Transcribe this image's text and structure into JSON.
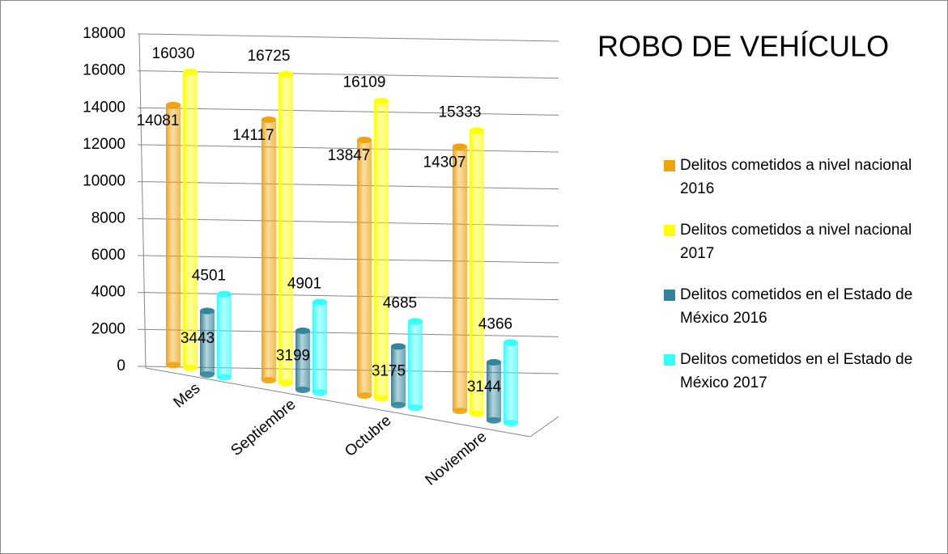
{
  "chart_data": {
    "type": "bar3d",
    "title": "ROBO DE VEHÍCULO",
    "categories": [
      "Mes",
      "Septiembre",
      "Octubre",
      "Noviembre"
    ],
    "series": [
      {
        "name": "Delitos cometidos a nivel nacional 2016",
        "color": "#f0a30a",
        "values": [
          14081,
          14117,
          13847,
          14307
        ]
      },
      {
        "name": "Delitos cometidos a nivel nacional 2017",
        "color": "#ffff00",
        "values": [
          16030,
          16725,
          16109,
          15333
        ]
      },
      {
        "name": "Delitos cometidos en el Estado de México 2016",
        "color": "#31849b",
        "values": [
          3443,
          3199,
          3175,
          3144
        ]
      },
      {
        "name": "Delitos cometidos en el Estado de México 2017",
        "color": "#33ffff",
        "values": [
          4501,
          4901,
          4685,
          4366
        ]
      }
    ],
    "ylim": [
      0,
      18000
    ],
    "yticks": [
      0,
      2000,
      4000,
      6000,
      8000,
      10000,
      12000,
      14000,
      16000,
      18000
    ],
    "grid": true
  }
}
